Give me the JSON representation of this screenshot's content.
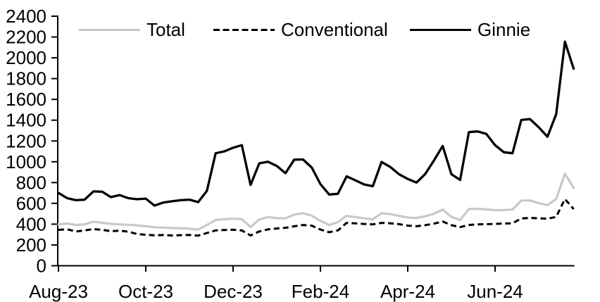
{
  "chart_data": {
    "type": "line",
    "title": "",
    "x_axis": {
      "ticks": [
        {
          "label": "Aug-23",
          "month": 0
        },
        {
          "label": "Oct-23",
          "month": 2
        },
        {
          "label": "Dec-23",
          "month": 4
        },
        {
          "label": "Feb-24",
          "month": 6
        },
        {
          "label": "Apr-24",
          "month": 8
        },
        {
          "label": "Jun-24",
          "month": 10
        }
      ],
      "span_months": 11.8
    },
    "y_axis": {
      "min": 0,
      "max": 2400,
      "step": 200,
      "tick_labels": [
        "0",
        "200",
        "400",
        "600",
        "800",
        "1000",
        "1200",
        "1400",
        "1600",
        "1800",
        "2000",
        "2200",
        "2400"
      ]
    },
    "grid": false,
    "legend_position": "top",
    "n_points": 60,
    "series": [
      {
        "name": "Total",
        "color": "#c8c8c8",
        "style": "solid",
        "values": [
          398,
          406,
          392,
          398,
          424,
          413,
          403,
          398,
          394,
          388,
          380,
          370,
          367,
          363,
          360,
          357,
          348,
          392,
          440,
          448,
          452,
          448,
          372,
          445,
          468,
          458,
          456,
          492,
          506,
          482,
          432,
          392,
          420,
          480,
          468,
          456,
          446,
          506,
          496,
          480,
          463,
          460,
          476,
          500,
          540,
          470,
          440,
          545,
          548,
          542,
          535,
          536,
          540,
          626,
          628,
          602,
          582,
          642,
          886,
          748
        ]
      },
      {
        "name": "Conventional",
        "color": "#000000",
        "style": "dashed",
        "values": [
          345,
          351,
          330,
          340,
          352,
          346,
          332,
          338,
          328,
          305,
          298,
          293,
          295,
          291,
          294,
          296,
          290,
          315,
          340,
          344,
          346,
          340,
          291,
          330,
          350,
          358,
          365,
          380,
          392,
          386,
          348,
          322,
          340,
          412,
          408,
          402,
          398,
          412,
          408,
          400,
          386,
          380,
          390,
          405,
          426,
          390,
          372,
          392,
          398,
          400,
          402,
          406,
          408,
          455,
          460,
          456,
          452,
          470,
          642,
          545
        ]
      },
      {
        "name": "Ginnie",
        "color": "#000000",
        "style": "solid",
        "values": [
          700,
          650,
          630,
          636,
          715,
          712,
          660,
          680,
          650,
          640,
          646,
          578,
          608,
          620,
          630,
          636,
          612,
          720,
          1082,
          1100,
          1135,
          1160,
          777,
          985,
          1000,
          960,
          890,
          1020,
          1022,
          945,
          785,
          685,
          692,
          860,
          822,
          782,
          765,
          998,
          950,
          880,
          835,
          800,
          882,
          1012,
          1152,
          880,
          825,
          1285,
          1292,
          1268,
          1160,
          1092,
          1082,
          1402,
          1410,
          1332,
          1240,
          1458,
          2155,
          1895
        ]
      }
    ]
  }
}
